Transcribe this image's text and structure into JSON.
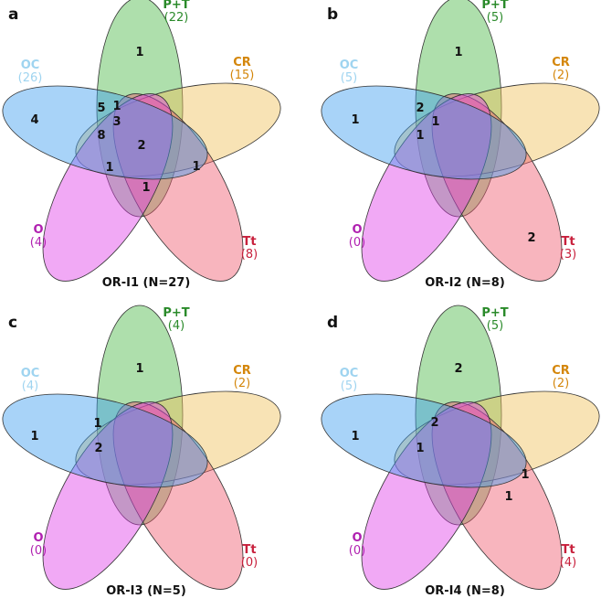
{
  "colors": {
    "pt": "#4cb848",
    "cr": "#f0c05a",
    "tt": "#ef5b6e",
    "o": "#e040e8",
    "oc": "#3d9ef0",
    "pt_label": "#2a8a2a",
    "cr_label": "#d4860a",
    "tt_label": "#c8203c",
    "o_label": "#b020b0",
    "oc_label": "#9fd4f0"
  },
  "panels": [
    {
      "letter": "a",
      "title": "OR-I1 (N=27)",
      "sets": {
        "pt": {
          "name": "P+T",
          "count": "(22)"
        },
        "cr": {
          "name": "CR",
          "count": "(15)"
        },
        "tt": {
          "name": "Tt",
          "count": "(8)"
        },
        "o": {
          "name": "O",
          "count": "(4)"
        },
        "oc": {
          "name": "OC",
          "count": "(26)"
        }
      },
      "regions": [
        "1",
        "4",
        "5",
        "1",
        "3",
        "8",
        "2",
        "1",
        "1",
        "1"
      ]
    },
    {
      "letter": "b",
      "title": "OR-I2 (N=8)",
      "sets": {
        "pt": {
          "name": "P+T",
          "count": "(5)"
        },
        "cr": {
          "name": "CR",
          "count": "(2)"
        },
        "tt": {
          "name": "Tt",
          "count": "(3)"
        },
        "o": {
          "name": "O",
          "count": "(0)"
        },
        "oc": {
          "name": "OC",
          "count": "(5)"
        }
      },
      "regions": [
        "1",
        "1",
        "2",
        "1",
        "1",
        "2"
      ]
    },
    {
      "letter": "c",
      "title": "OR-I3 (N=5)",
      "sets": {
        "pt": {
          "name": "P+T",
          "count": "(4)"
        },
        "cr": {
          "name": "CR",
          "count": "(2)"
        },
        "tt": {
          "name": "Tt",
          "count": "(0)"
        },
        "o": {
          "name": "O",
          "count": "(0)"
        },
        "oc": {
          "name": "OC",
          "count": "(4)"
        }
      },
      "regions": [
        "1",
        "1",
        "1",
        "2"
      ]
    },
    {
      "letter": "d",
      "title": "OR-I4 (N=8)",
      "sets": {
        "pt": {
          "name": "P+T",
          "count": "(5)"
        },
        "cr": {
          "name": "CR",
          "count": "(2)"
        },
        "tt": {
          "name": "Tt",
          "count": "(4)"
        },
        "o": {
          "name": "O",
          "count": "(0)"
        },
        "oc": {
          "name": "OC",
          "count": "(5)"
        }
      },
      "regions": [
        "2",
        "1",
        "2",
        "1",
        "1",
        "1"
      ]
    }
  ]
}
